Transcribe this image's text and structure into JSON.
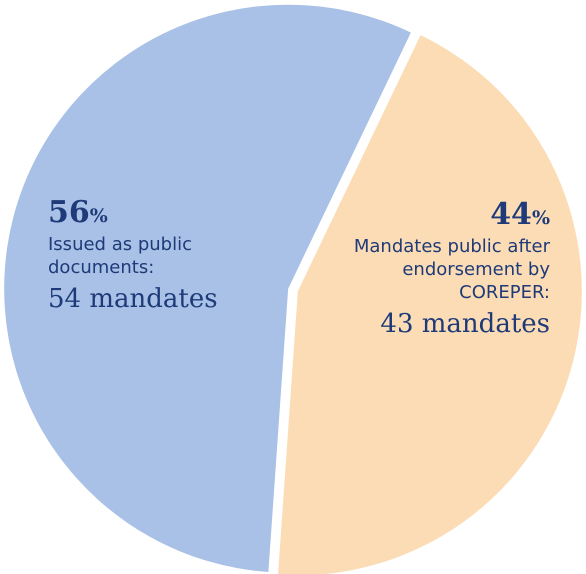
{
  "chart_data": {
    "type": "pie",
    "slices": [
      {
        "name": "Issued as public documents",
        "value": 56,
        "percent_label": "56",
        "percent_symbol": "%",
        "description": "Issued as public documents:",
        "count_label": "54 mandates",
        "color": "#a9c1e6"
      },
      {
        "name": "Mandates public after endorsement by COREPER",
        "value": 44,
        "percent_label": "44",
        "percent_symbol": "%",
        "description": "Mandates public after endorsement by COREPER:",
        "count_label": "43 mandates",
        "color": "#fbdcb4"
      }
    ],
    "legend": "none",
    "label_color": "#1f3a78"
  }
}
